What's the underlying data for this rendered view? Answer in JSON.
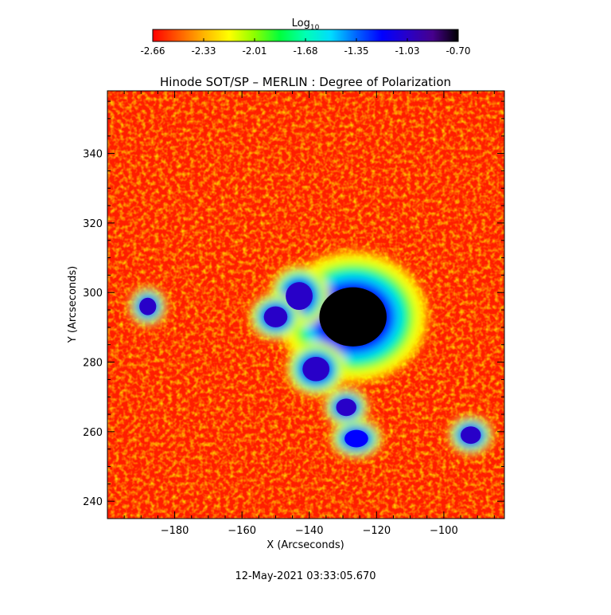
{
  "chart_data": {
    "type": "heatmap",
    "title": "Hinode SOT/SP – MERLIN : Degree of Polarization",
    "xlabel": "X (Arcseconds)",
    "ylabel": "Y (Arcseconds)",
    "xlim": [
      -200,
      -82
    ],
    "ylim": [
      235,
      358
    ],
    "x_ticks": [
      -180,
      -160,
      -140,
      -120,
      -100
    ],
    "y_ticks": [
      240,
      260,
      280,
      300,
      320,
      340
    ],
    "colorbar": {
      "label_base": "Log",
      "label_sub": "10",
      "ticks": [
        "-2.66",
        "-2.33",
        "-2.01",
        "-1.68",
        "-1.35",
        "-1.03",
        "-0.70"
      ],
      "range": [
        -2.66,
        -0.7
      ],
      "colormap": [
        "#ff0000",
        "#ff5a00",
        "#ffb400",
        "#ffff00",
        "#8cff00",
        "#00ff3c",
        "#00ffb4",
        "#00dcff",
        "#0064ff",
        "#0000ff",
        "#2800c8",
        "#46008c",
        "#000000"
      ]
    },
    "features": [
      {
        "name": "umbra",
        "x": -127,
        "y": 293,
        "rx": 10,
        "ry": 8.5,
        "value": -0.78
      },
      {
        "name": "pore",
        "x": -143,
        "y": 299,
        "rx": 4,
        "ry": 4,
        "value": -0.95
      },
      {
        "name": "pore",
        "x": -138,
        "y": 278,
        "rx": 4,
        "ry": 3.5,
        "value": -0.95
      },
      {
        "name": "pore",
        "x": -150,
        "y": 293,
        "rx": 3.5,
        "ry": 3,
        "value": -1.0
      },
      {
        "name": "pore",
        "x": -188,
        "y": 296,
        "rx": 2.5,
        "ry": 2.5,
        "value": -1.1
      },
      {
        "name": "pore",
        "x": -129,
        "y": 267,
        "rx": 3,
        "ry": 2.5,
        "value": -1.1
      },
      {
        "name": "pore",
        "x": -126,
        "y": 258,
        "rx": 3.5,
        "ry": 2.5,
        "value": -1.15
      },
      {
        "name": "pore",
        "x": -92,
        "y": 259,
        "rx": 3,
        "ry": 2.5,
        "value": -1.1
      }
    ]
  },
  "timestamp": "12-May-2021 03:33:05.670"
}
